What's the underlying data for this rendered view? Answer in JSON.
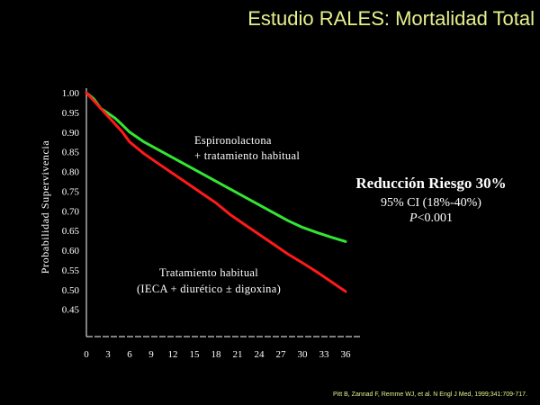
{
  "slide": {
    "title": "Estudio RALES: Mortalidad Total",
    "citation": "Pitt B, Zannad F, Remme WJ, et al. N Engl J Med, 1999;341:709-717."
  },
  "stats": {
    "headline": "Reducción Riesgo 30%",
    "ci": "95% CI (18%-40%)",
    "p_letter": "P",
    "p_rest": "<0.001"
  },
  "colors": {
    "background": "#000000",
    "title": "#e6f08c",
    "spironolactone": "#33e633",
    "usual_care": "#ff1a1a",
    "text": "#ffffff"
  },
  "chart_data": {
    "type": "line",
    "title": "",
    "xlabel": "",
    "ylabel": "Probabilidad Supervivencia",
    "xlim": [
      0,
      36
    ],
    "ylim": [
      0.45,
      1.0
    ],
    "x_ticks": [
      "0",
      "3",
      "6",
      "9",
      "12",
      "15",
      "18",
      "21",
      "24",
      "27",
      "30",
      "33",
      "36"
    ],
    "y_ticks": [
      "1.00",
      "0.95",
      "0.90",
      "0.85",
      "0.80",
      "0.75",
      "0.70",
      "0.65",
      "0.60",
      "0.55",
      "0.50",
      "0.45"
    ],
    "grid": false,
    "series": [
      {
        "name": "Espironolactona + tratamiento habitual",
        "color": "#33e633",
        "x": [
          0,
          1,
          2,
          3,
          4,
          5,
          6,
          8,
          10,
          12,
          14,
          16,
          18,
          20,
          22,
          24,
          26,
          28,
          30,
          32,
          34,
          36
        ],
        "y": [
          1.0,
          0.985,
          0.96,
          0.948,
          0.935,
          0.918,
          0.9,
          0.875,
          0.855,
          0.835,
          0.815,
          0.795,
          0.775,
          0.755,
          0.735,
          0.715,
          0.695,
          0.675,
          0.658,
          0.645,
          0.633,
          0.622
        ]
      },
      {
        "name": "Tratamiento habitual (IECA + diurético ± digoxina)",
        "color": "#ff1a1a",
        "x": [
          0,
          1,
          2,
          3,
          4,
          5,
          6,
          8,
          10,
          12,
          14,
          16,
          18,
          20,
          22,
          24,
          26,
          28,
          30,
          32,
          34,
          36
        ],
        "y": [
          1.0,
          0.98,
          0.96,
          0.94,
          0.92,
          0.9,
          0.875,
          0.845,
          0.82,
          0.795,
          0.77,
          0.745,
          0.72,
          0.69,
          0.665,
          0.64,
          0.615,
          0.59,
          0.568,
          0.545,
          0.52,
          0.495
        ]
      }
    ],
    "annotations": [
      {
        "lines": [
          "Espironolactona",
          "+ tratamiento habitual"
        ]
      },
      {
        "lines": [
          "Tratamiento habitual",
          "(IECA + diurético ± digoxina)"
        ]
      }
    ]
  }
}
